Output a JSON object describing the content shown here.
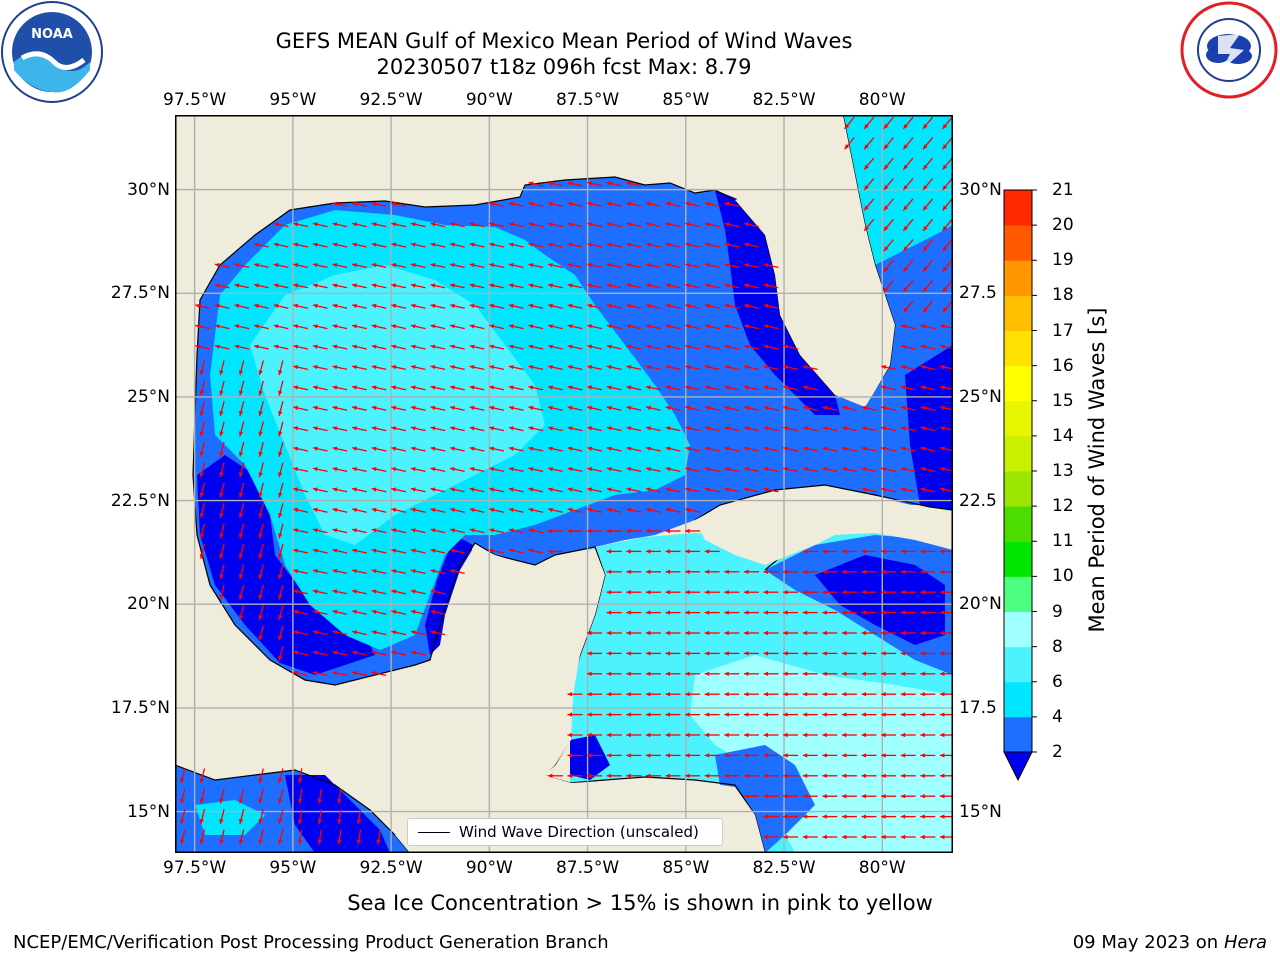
{
  "header": {
    "title_line1": "GEFS MEAN Gulf of Mexico Mean Period of Wind Waves",
    "title_line2": "20230507 t18z 096h fcst   Max: 8.79"
  },
  "logos": {
    "left": "noaa-logo",
    "right": "national-weather-service-logo"
  },
  "map": {
    "region": "Gulf of Mexico",
    "lon_range": [
      -98.0,
      -78.2
    ],
    "lat_range": [
      14.0,
      31.8
    ],
    "x_ticks_top": [
      "97.5°W",
      "95°W",
      "92.5°W",
      "90°W",
      "87.5°W",
      "85°W",
      "82.5°W",
      "80°W"
    ],
    "x_ticks_bottom": [
      "97.5°W",
      "95°W",
      "92.5°W",
      "90°W",
      "87.5°W",
      "85°W",
      "82.5°W",
      "80°W"
    ],
    "y_ticks_left": [
      "30°N",
      "27.5°N",
      "25°N",
      "22.5°N",
      "20°N",
      "17.5°N",
      "15°N"
    ],
    "y_ticks_right": [
      "30°N",
      "27.5",
      "25°N",
      "22.5",
      "20°N",
      "17.5",
      "15°N"
    ],
    "legend_label": "Wind Wave Direction (unscaled)",
    "land_color": "#efecdc",
    "arrow_color": "#ff0000",
    "grid": true
  },
  "colorbar": {
    "label": "Mean Period of Wind Waves [s]",
    "levels": [
      "2",
      "4",
      "6",
      "8",
      "9",
      "10",
      "11",
      "12",
      "13",
      "14",
      "15",
      "16",
      "17",
      "18",
      "19",
      "20",
      "21"
    ],
    "colors": [
      "#1e6eff",
      "#00e6ff",
      "#4df2ff",
      "#a0ffff",
      "#4dff80",
      "#00e600",
      "#4ddc00",
      "#9be600",
      "#c8f000",
      "#e6f500",
      "#ffff00",
      "#ffe100",
      "#ffbe00",
      "#ff9600",
      "#ff5a00",
      "#ff2800"
    ],
    "under_color": "#0000f0"
  },
  "footer": {
    "note": "Sea Ice Concentration > 15% is shown in pink to yellow",
    "credit": "NCEP/EMC/Verification Post Processing Product Generation Branch",
    "date": "09 May 2023 on",
    "host": "Hera"
  }
}
